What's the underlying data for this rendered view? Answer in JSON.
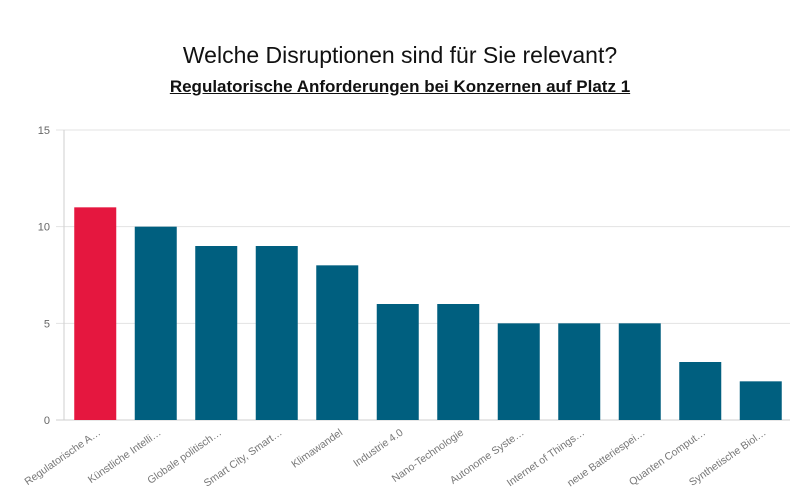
{
  "chart_data": {
    "type": "bar",
    "title": "Welche Disruptionen sind für Sie relevant?",
    "subtitle": "Regulatorische Anforderungen bei Konzernen auf Platz 1",
    "xlabel": "",
    "ylabel": "",
    "ylim": [
      0,
      15
    ],
    "yticks": [
      "0",
      "5",
      "10",
      "15"
    ],
    "grid": true,
    "categories": [
      "Regulatorische A…",
      "Künstliche Intelli…",
      "Globale politisch…",
      "Smart City, Smart…",
      "Klimawandel",
      "Industrie 4.0",
      "Nano-Technologie",
      "Autonome Syste…",
      "Internet of Things…",
      "neue Batteriespei…",
      "Quanten Comput…",
      "Synthetische Biol…"
    ],
    "values": [
      11,
      10,
      9,
      9,
      8,
      6,
      6,
      5,
      5,
      5,
      3,
      2
    ],
    "highlight_index": 0,
    "colors": {
      "highlight": "#E5173F",
      "bar": "#005F7F",
      "grid": "#e3e3e3",
      "axis": "#cfcfcf"
    }
  }
}
